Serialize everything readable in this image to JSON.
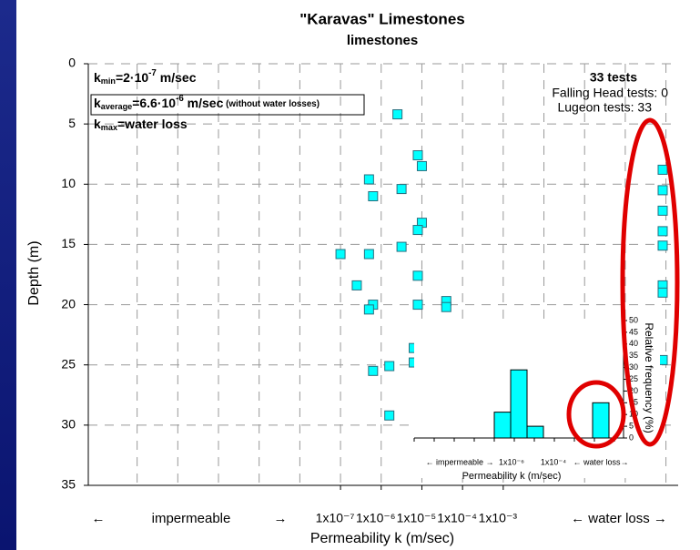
{
  "chart_data": {
    "type": "scatter",
    "title": "\"Karavas\" Limestones",
    "subtitle": "limestones",
    "ylabel": "Depth  (m)",
    "xlabel": "Permeability k (m/sec)",
    "y_inverted": true,
    "ylim": [
      0,
      35
    ],
    "yticks": [
      0,
      5,
      10,
      15,
      20,
      25,
      30,
      35
    ],
    "log_x": true,
    "xlim": [
      -13.2,
      1.3
    ],
    "xticks": [
      {
        "value": -7,
        "label": "1x10⁻⁷"
      },
      {
        "value": -6,
        "label": "1x10⁻⁶"
      },
      {
        "value": -5,
        "label": "1x10⁻⁵"
      },
      {
        "value": -4,
        "label": "1x10⁻⁴"
      },
      {
        "value": -3,
        "label": "1x10⁻³"
      }
    ],
    "xgrid": [
      -12,
      -11,
      -10,
      -9,
      -8,
      -7,
      -6,
      -5,
      -4,
      -3,
      -2,
      -1,
      0,
      1
    ],
    "x_region_labels": [
      "←",
      "impermeable",
      "→",
      "← water loss →"
    ],
    "grid": true,
    "marker_color": "#00ffff",
    "points": {
      "x": [
        -5.6,
        -5.1,
        -5.0,
        -6.3,
        -5.5,
        -6.2,
        -5.0,
        -5.1,
        -5.5,
        -6.3,
        -7.0,
        -5.1,
        -6.6,
        -4.4,
        -4.4,
        -6.2,
        -6.3,
        -5.1,
        -5.2,
        -4.6,
        -5.2,
        -5.8,
        -6.2,
        -5.8
      ],
      "y": [
        4.2,
        7.6,
        8.5,
        9.6,
        10.4,
        11.0,
        13.2,
        13.8,
        15.2,
        15.8,
        15.8,
        17.6,
        18.4,
        19.7,
        20.2,
        20.0,
        20.4,
        20.0,
        23.6,
        24.5,
        24.8,
        25.1,
        25.5,
        29.2
      ]
    },
    "water_loss_depths": [
      8.8,
      10.5,
      12.2,
      13.9,
      15.1,
      18.4,
      19.0,
      24.6
    ],
    "annotations": {
      "k_min": {
        "symbol": "k",
        "subscript": "min",
        "text": "=2·10",
        "superscript": "-7",
        "unit": " m/sec"
      },
      "k_average": {
        "symbol": "k",
        "subscript": "average",
        "text": "=6.6·10",
        "superscript": "-6",
        "unit": " m/sec",
        "note": " (without water losses)"
      },
      "k_max": {
        "symbol": "k",
        "subscript": "max",
        "text": "=water loss"
      }
    },
    "stats": [
      "33 tests",
      "Falling Head tests: 0",
      "Lugeon tests: 33"
    ],
    "inset": {
      "type": "bar",
      "ylabel": "Relative frequency (%)",
      "xlabel": "Permeability k (m/sec)",
      "x_labels": [
        "← impermeable →",
        "1x10⁻⁶",
        "1x10⁻⁴",
        "← water loss→"
      ],
      "ylim": [
        0,
        50
      ],
      "yticks": [
        0,
        5,
        10,
        15,
        20,
        25,
        30,
        35,
        40,
        45,
        50
      ],
      "values": [
        11,
        29,
        5,
        15
      ],
      "color": "#00ffff"
    }
  }
}
